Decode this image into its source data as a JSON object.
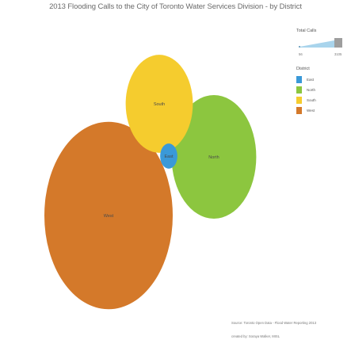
{
  "chart_data": {
    "type": "bubble",
    "title": "2013  Flooding Calls to the City of Toronto Water Services Division - by District",
    "series": [
      {
        "name": "West",
        "value": 3105,
        "color": "#d4792a"
      },
      {
        "name": "North",
        "value": 1350,
        "color": "#8cc63f"
      },
      {
        "name": "South",
        "value": 850,
        "color": "#f5cc2e"
      },
      {
        "name": "East",
        "value": 56,
        "color": "#3a99d8"
      }
    ],
    "size_legend": {
      "title": "Total Calls",
      "min_label": "56",
      "max_label": "3105"
    },
    "color_legend": {
      "title": "District",
      "items": [
        "East",
        "North",
        "South",
        "West"
      ]
    }
  },
  "footer": {
    "source": "Source: Toronto Open Data - Flood Water Reporting 2013",
    "credit": "created by: Soraya Walker, MISL"
  }
}
